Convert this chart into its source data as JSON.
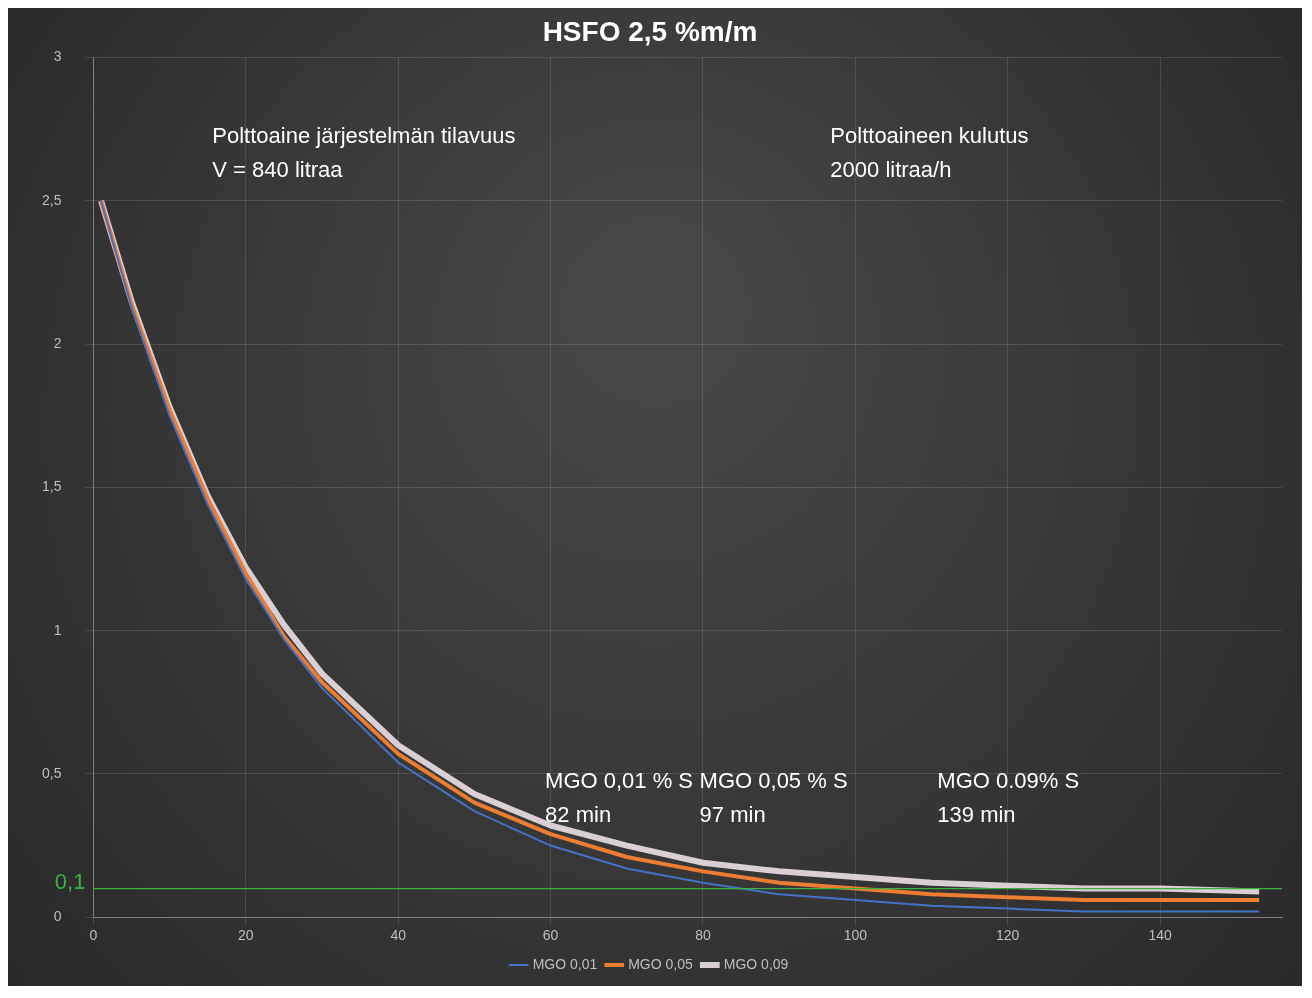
{
  "chart_data": {
    "type": "line",
    "title": "HSFO 2,5 %m/m",
    "x": [
      1,
      5,
      10,
      15,
      20,
      25,
      30,
      40,
      50,
      60,
      70,
      80,
      90,
      100,
      110,
      120,
      130,
      140,
      153
    ],
    "series": [
      {
        "name": "MGO 0,01",
        "color": "#4472c4",
        "values": [
          2.5,
          2.13,
          1.75,
          1.44,
          1.18,
          0.97,
          0.8,
          0.54,
          0.37,
          0.25,
          0.17,
          0.12,
          0.08,
          0.06,
          0.04,
          0.03,
          0.02,
          0.02,
          0.02
        ]
      },
      {
        "name": "MGO 0,05",
        "color": "#ed7d31",
        "values": [
          2.5,
          2.14,
          1.77,
          1.46,
          1.2,
          0.98,
          0.82,
          0.57,
          0.4,
          0.29,
          0.21,
          0.16,
          0.12,
          0.1,
          0.08,
          0.07,
          0.06,
          0.06,
          0.06
        ]
      },
      {
        "name": "MGO 0,09",
        "color": "#d9cfd4",
        "values": [
          2.5,
          2.15,
          1.78,
          1.47,
          1.22,
          1.02,
          0.85,
          0.6,
          0.43,
          0.32,
          0.25,
          0.19,
          0.16,
          0.14,
          0.12,
          0.11,
          0.1,
          0.1,
          0.09
        ]
      }
    ],
    "xlim": [
      0,
      156
    ],
    "xticks": [
      0,
      20,
      40,
      60,
      80,
      100,
      120,
      140
    ],
    "ylim": [
      0,
      3
    ],
    "yticks": [
      0,
      {
        "value": 0.5,
        "label": "0,5"
      },
      1,
      {
        "value": 1.5,
        "label": "1,5"
      },
      2,
      {
        "value": 2.5,
        "label": "2,5"
      },
      3
    ],
    "ref_lines": [
      {
        "axis": "y",
        "value": 0.1,
        "label": "0,1",
        "color": "#3cb043"
      }
    ],
    "annotations": [
      "Polttoaine järjestelmän tilavuus\nV = 840 litraa",
      "Polttoaineen kulutus\n2000 litraa/h",
      "MGO 0,01 % S\n82 min",
      "MGO 0,05 % S\n97 min",
      "MGO 0.09% S\n139 min"
    ],
    "grid": true,
    "legend": "bottom",
    "marker": "none",
    "line_style": "solid"
  }
}
